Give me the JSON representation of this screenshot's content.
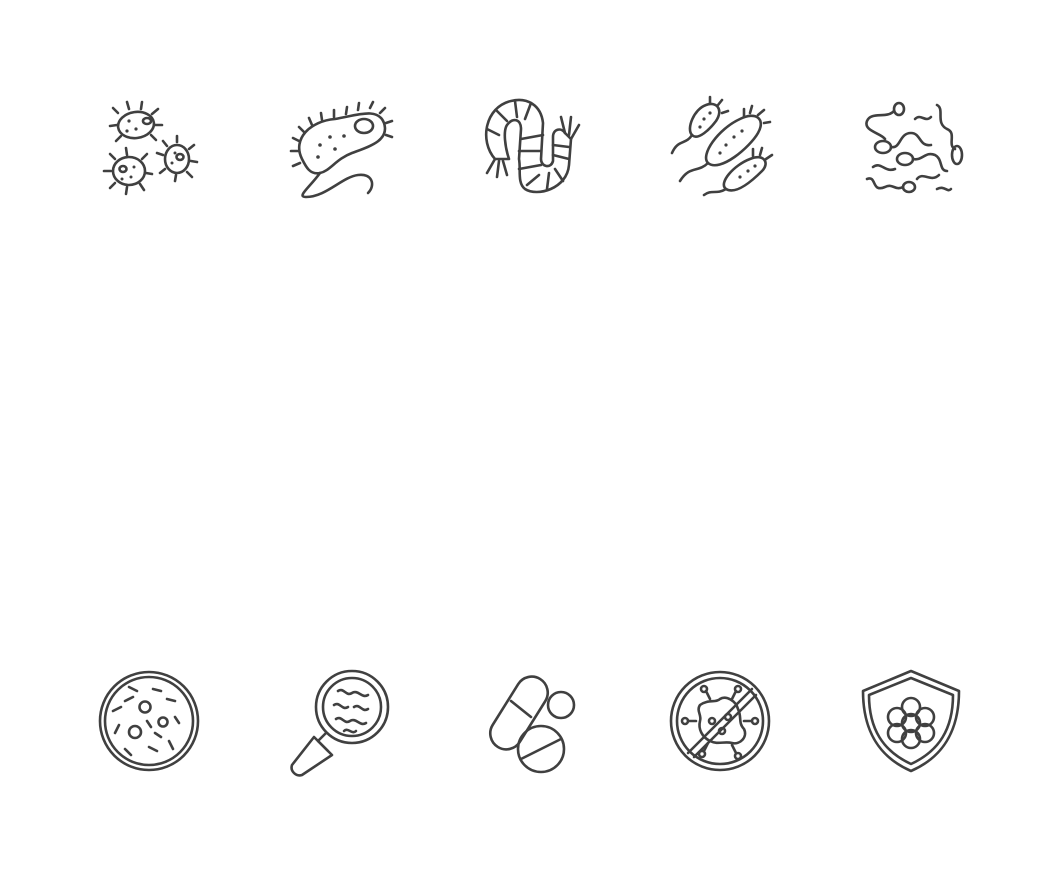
{
  "icon_set": {
    "stroke_color": "#404040",
    "background_color": "#ffffff",
    "rows": [
      [
        "bacteria-colony-icon",
        "paramecium-icon",
        "worm-icon",
        "flagellated-bacteria-icon",
        "spirochete-icon"
      ],
      [
        "petri-dish-icon",
        "magnifier-microbe-icon",
        "pills-icon",
        "no-virus-icon",
        "immune-shield-icon"
      ]
    ]
  }
}
